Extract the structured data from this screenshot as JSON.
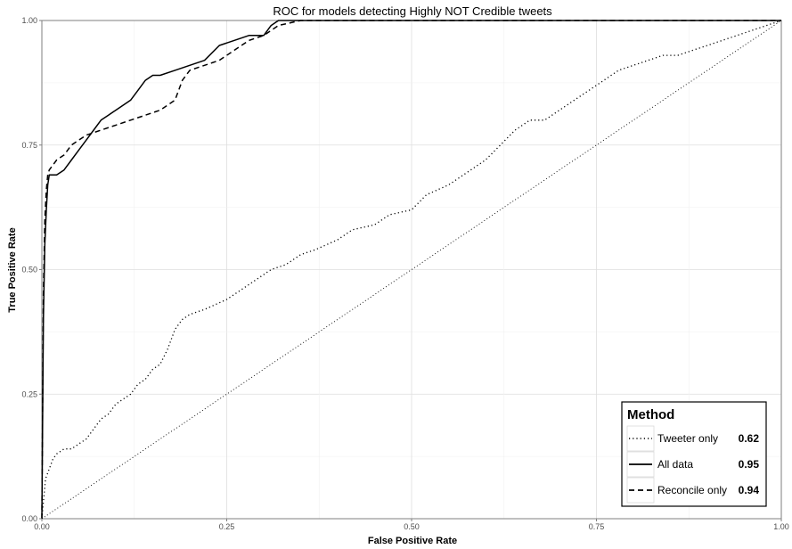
{
  "chart_data": {
    "type": "line",
    "title": "ROC for models detecting Highly NOT Credible tweets",
    "xlabel": "False Positive Rate",
    "ylabel": "True Positive Rate",
    "xlim": [
      0,
      1
    ],
    "ylim": [
      0,
      1
    ],
    "x_ticks": [
      "0.00",
      "0.25",
      "0.50",
      "0.75",
      "1.00"
    ],
    "y_ticks": [
      "0.00",
      "0.25",
      "0.50",
      "0.75",
      "1.00"
    ],
    "grid": true,
    "legend": {
      "title": "Method",
      "placement": "bottom-right"
    },
    "series": [
      {
        "name": "Tweeter only",
        "auc": "0.62",
        "line_style": "dotted",
        "x": [
          0,
          0.005,
          0.01,
          0.015,
          0.02,
          0.03,
          0.04,
          0.05,
          0.06,
          0.07,
          0.08,
          0.09,
          0.1,
          0.11,
          0.12,
          0.13,
          0.14,
          0.15,
          0.16,
          0.17,
          0.18,
          0.19,
          0.2,
          0.22,
          0.25,
          0.27,
          0.29,
          0.31,
          0.33,
          0.35,
          0.37,
          0.4,
          0.42,
          0.45,
          0.47,
          0.5,
          0.52,
          0.55,
          0.57,
          0.6,
          0.62,
          0.64,
          0.66,
          0.68,
          0.7,
          0.72,
          0.74,
          0.76,
          0.78,
          0.8,
          0.82,
          0.84,
          0.86,
          0.88,
          0.9,
          0.92,
          0.94,
          0.96,
          0.98,
          1.0
        ],
        "y": [
          0,
          0.08,
          0.1,
          0.12,
          0.13,
          0.14,
          0.14,
          0.15,
          0.16,
          0.18,
          0.2,
          0.21,
          0.23,
          0.24,
          0.25,
          0.27,
          0.28,
          0.3,
          0.31,
          0.34,
          0.38,
          0.4,
          0.41,
          0.42,
          0.44,
          0.46,
          0.48,
          0.5,
          0.51,
          0.53,
          0.54,
          0.56,
          0.58,
          0.59,
          0.61,
          0.62,
          0.65,
          0.67,
          0.69,
          0.72,
          0.75,
          0.78,
          0.8,
          0.8,
          0.82,
          0.84,
          0.86,
          0.88,
          0.9,
          0.91,
          0.92,
          0.93,
          0.93,
          0.94,
          0.95,
          0.96,
          0.97,
          0.98,
          0.99,
          1.0
        ]
      },
      {
        "name": "All data",
        "auc": "0.95",
        "line_style": "solid",
        "x": [
          0,
          0.002,
          0.004,
          0.006,
          0.008,
          0.01,
          0.02,
          0.03,
          0.04,
          0.05,
          0.06,
          0.07,
          0.08,
          0.09,
          0.1,
          0.11,
          0.12,
          0.13,
          0.14,
          0.15,
          0.16,
          0.18,
          0.2,
          0.22,
          0.24,
          0.26,
          0.28,
          0.3,
          0.31,
          0.32,
          0.4,
          0.5,
          0.6,
          0.7,
          0.8,
          0.9,
          1.0
        ],
        "y": [
          0,
          0.4,
          0.55,
          0.62,
          0.67,
          0.69,
          0.69,
          0.7,
          0.72,
          0.74,
          0.76,
          0.78,
          0.8,
          0.81,
          0.82,
          0.83,
          0.84,
          0.86,
          0.88,
          0.89,
          0.89,
          0.9,
          0.91,
          0.92,
          0.95,
          0.96,
          0.97,
          0.97,
          0.99,
          1.0,
          1.0,
          1.0,
          1.0,
          1.0,
          1.0,
          1.0,
          1.0
        ]
      },
      {
        "name": "Reconcile only",
        "auc": "0.94",
        "line_style": "dashed",
        "x": [
          0,
          0.002,
          0.004,
          0.006,
          0.008,
          0.01,
          0.02,
          0.03,
          0.04,
          0.05,
          0.06,
          0.08,
          0.1,
          0.12,
          0.14,
          0.16,
          0.18,
          0.19,
          0.2,
          0.22,
          0.24,
          0.26,
          0.28,
          0.3,
          0.32,
          0.35,
          0.4,
          0.5,
          0.6,
          0.7,
          0.8,
          0.9,
          1.0
        ],
        "y": [
          0,
          0.45,
          0.6,
          0.66,
          0.69,
          0.7,
          0.72,
          0.73,
          0.75,
          0.76,
          0.77,
          0.78,
          0.79,
          0.8,
          0.81,
          0.82,
          0.84,
          0.88,
          0.9,
          0.91,
          0.92,
          0.94,
          0.96,
          0.97,
          0.99,
          1.0,
          1.0,
          1.0,
          1.0,
          1.0,
          1.0,
          1.0,
          1.0
        ]
      },
      {
        "name": "",
        "line_style": "dotted-thin",
        "x": [
          0,
          1
        ],
        "y": [
          0,
          1
        ]
      }
    ]
  }
}
